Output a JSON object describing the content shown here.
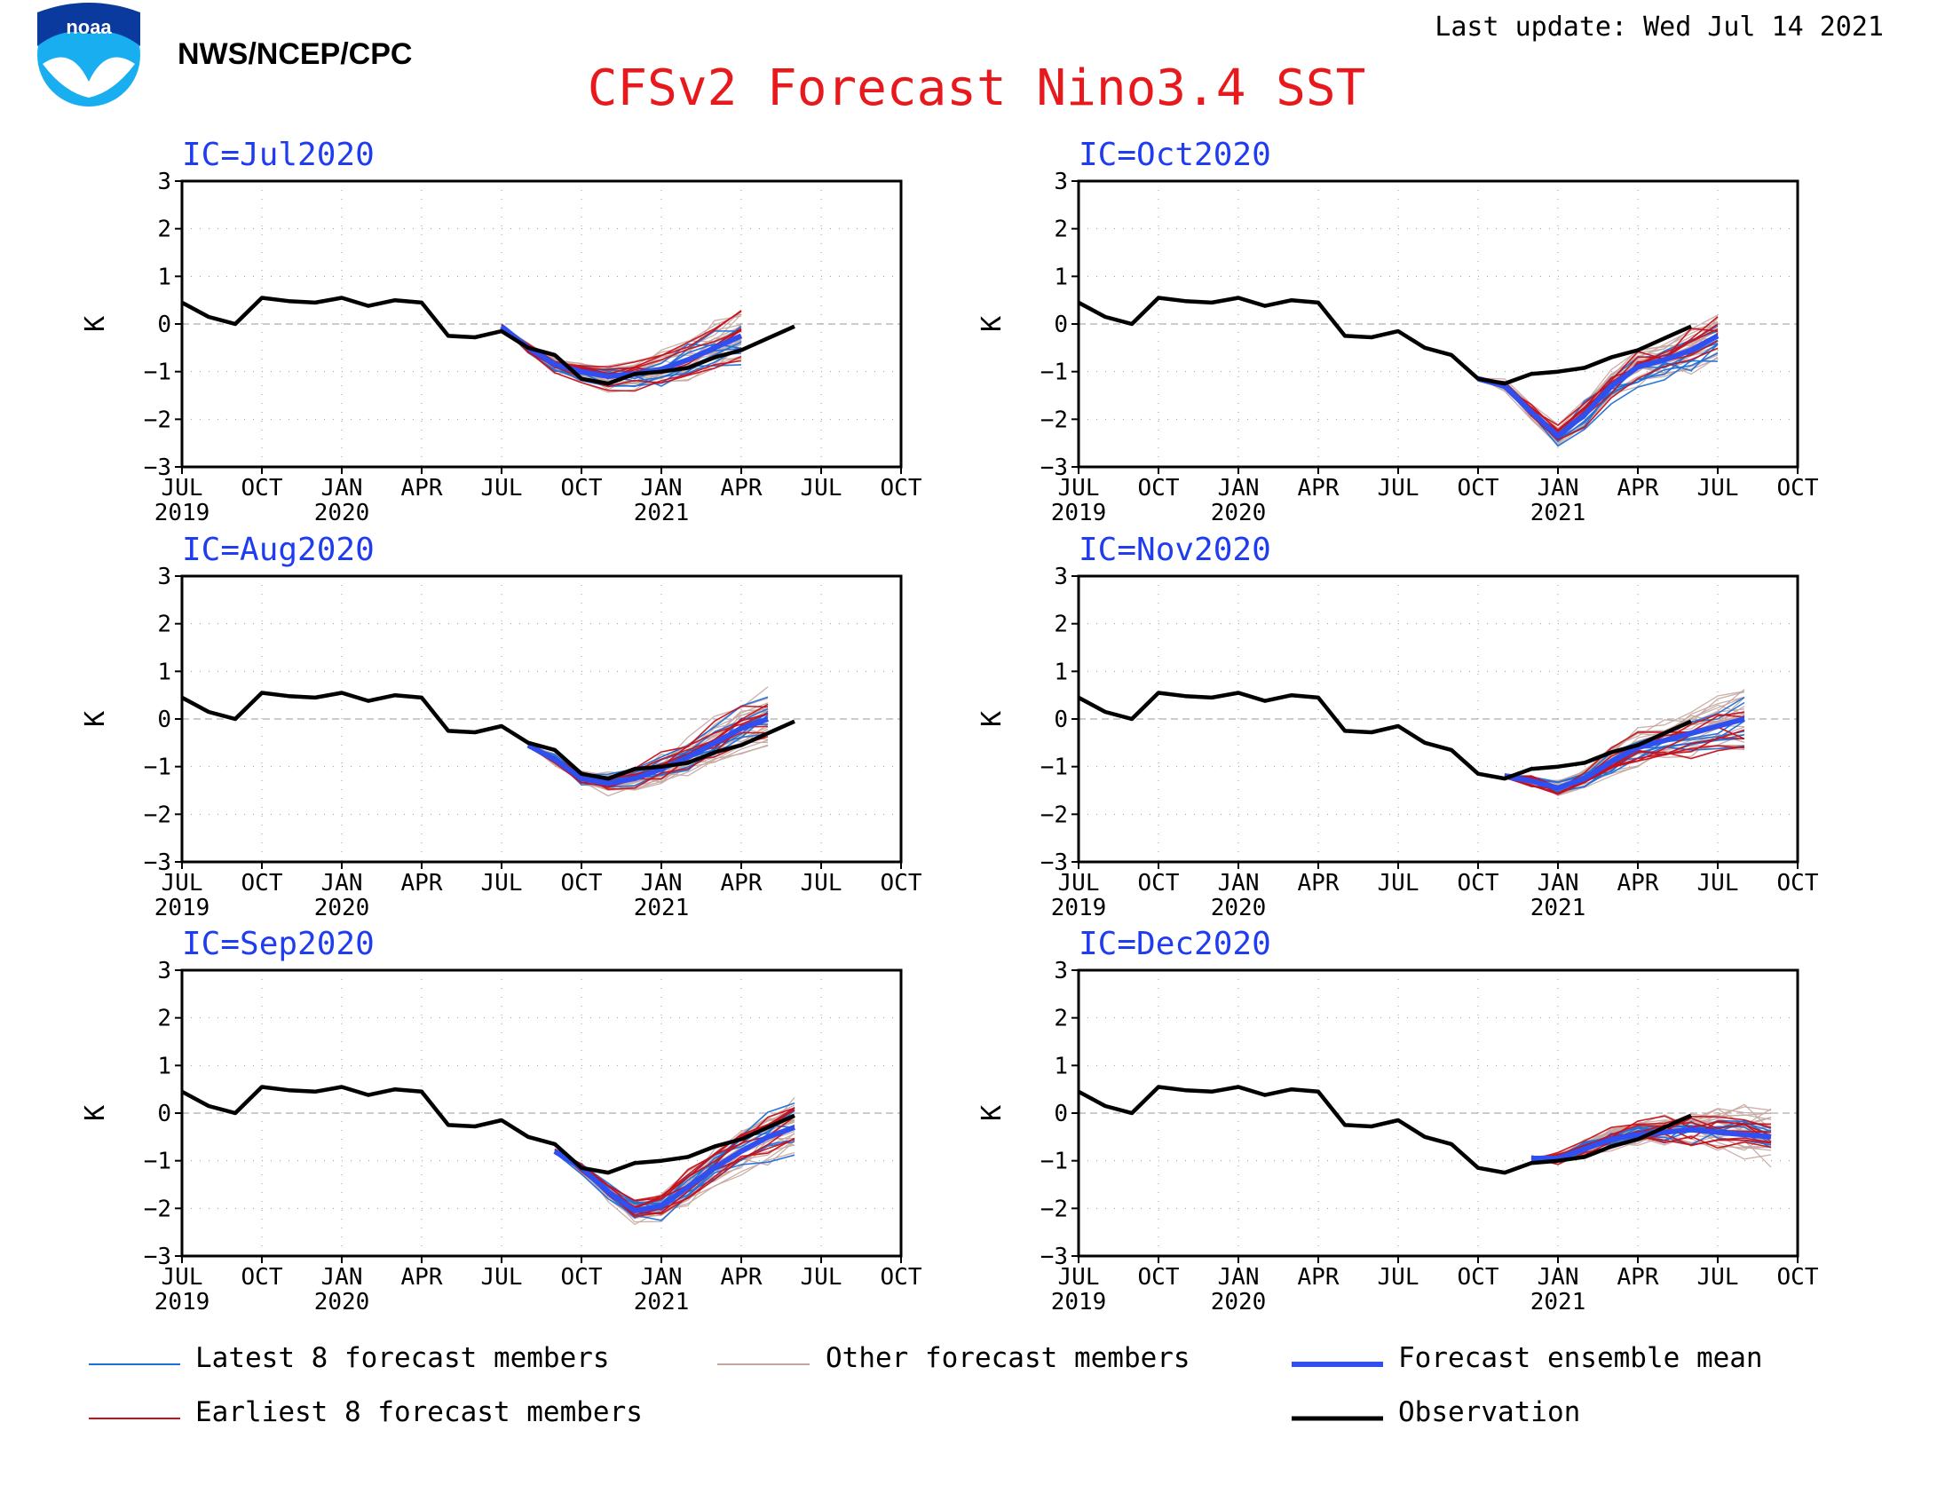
{
  "header": {
    "agency": "NWS/NCEP/CPC",
    "last_update": "Last update: Wed Jul 14 2021",
    "title": "CFSv2 Forecast Nino3.4 SST",
    "logo_text": "noaa"
  },
  "colors": {
    "title": "#e8191c",
    "panel_title": "#1f3cf0",
    "observation": "#000000",
    "ensemble_mean": "#2f4ff0",
    "latest_members": "#1e6fd8",
    "earliest_members": "#c8101a",
    "other_members": "#c4a6a0",
    "noaa_blue": "#19aef0"
  },
  "axis_common": {
    "ylabel": "K",
    "yticks": [
      "3",
      "2",
      "1",
      "0",
      "−1",
      "−2",
      "−3"
    ],
    "ylim": [
      -3,
      3
    ],
    "xtick_months": [
      "JUL",
      "OCT",
      "JAN",
      "APR",
      "JUL",
      "OCT",
      "JAN",
      "APR",
      "JUL",
      "OCT"
    ],
    "xtick_years": [
      "2019",
      "",
      "2020",
      "",
      "",
      "",
      "2021",
      "",
      "",
      ""
    ]
  },
  "legend": {
    "latest": "Latest 8 forecast members",
    "other": "Other forecast members",
    "mean": "Forecast ensemble mean",
    "earliest": "Earliest 8 forecast members",
    "observation": "Observation"
  },
  "chart_data": [
    {
      "type": "line",
      "title": "IC=Jul2020",
      "x": [
        "2019-07",
        "2019-08",
        "2019-09",
        "2019-10",
        "2019-11",
        "2019-12",
        "2020-01",
        "2020-02",
        "2020-03",
        "2020-04",
        "2020-05",
        "2020-06",
        "2020-07",
        "2020-08",
        "2020-09",
        "2020-10",
        "2020-11",
        "2020-12",
        "2021-01",
        "2021-02",
        "2021-03",
        "2021-04",
        "2021-05",
        "2021-06"
      ],
      "observation": [
        0.45,
        0.15,
        0.0,
        0.55,
        0.48,
        0.45,
        0.55,
        0.38,
        0.5,
        0.45,
        -0.25,
        -0.28,
        -0.15,
        -0.5,
        -0.65,
        -1.15,
        -1.25,
        -1.05,
        -1.0,
        -0.92,
        -0.7,
        -0.55,
        -0.3,
        -0.05
      ],
      "forecast_months": [
        "2020-07",
        "2020-08",
        "2020-09",
        "2020-10",
        "2020-11",
        "2020-12",
        "2021-01",
        "2021-02",
        "2021-03",
        "2021-04"
      ],
      "ensemble_mean": [
        -0.05,
        -0.5,
        -0.85,
        -1.0,
        -1.1,
        -1.05,
        -0.95,
        -0.75,
        -0.5,
        -0.25
      ]
    },
    {
      "type": "line",
      "title": "IC=Oct2020",
      "x": [
        "2019-07",
        "2019-08",
        "2019-09",
        "2019-10",
        "2019-11",
        "2019-12",
        "2020-01",
        "2020-02",
        "2020-03",
        "2020-04",
        "2020-05",
        "2020-06",
        "2020-07",
        "2020-08",
        "2020-09",
        "2020-10",
        "2020-11",
        "2020-12",
        "2021-01",
        "2021-02",
        "2021-03",
        "2021-04",
        "2021-05",
        "2021-06"
      ],
      "observation": [
        0.45,
        0.15,
        0.0,
        0.55,
        0.48,
        0.45,
        0.55,
        0.38,
        0.5,
        0.45,
        -0.25,
        -0.28,
        -0.15,
        -0.5,
        -0.65,
        -1.15,
        -1.25,
        -1.05,
        -1.0,
        -0.92,
        -0.7,
        -0.55,
        -0.3,
        -0.05
      ],
      "forecast_months": [
        "2020-10",
        "2020-11",
        "2020-12",
        "2021-01",
        "2021-02",
        "2021-03",
        "2021-04",
        "2021-05",
        "2021-06",
        "2021-07"
      ],
      "ensemble_mean": [
        -1.15,
        -1.3,
        -1.85,
        -2.35,
        -1.9,
        -1.3,
        -0.9,
        -0.75,
        -0.55,
        -0.25
      ]
    },
    {
      "type": "line",
      "title": "IC=Aug2020",
      "x": [
        "2019-07",
        "2019-08",
        "2019-09",
        "2019-10",
        "2019-11",
        "2019-12",
        "2020-01",
        "2020-02",
        "2020-03",
        "2020-04",
        "2020-05",
        "2020-06",
        "2020-07",
        "2020-08",
        "2020-09",
        "2020-10",
        "2020-11",
        "2020-12",
        "2021-01",
        "2021-02",
        "2021-03",
        "2021-04",
        "2021-05",
        "2021-06"
      ],
      "observation": [
        0.45,
        0.15,
        0.0,
        0.55,
        0.48,
        0.45,
        0.55,
        0.38,
        0.5,
        0.45,
        -0.25,
        -0.28,
        -0.15,
        -0.5,
        -0.65,
        -1.15,
        -1.25,
        -1.05,
        -1.0,
        -0.92,
        -0.7,
        -0.55,
        -0.3,
        -0.05
      ],
      "forecast_months": [
        "2020-08",
        "2020-09",
        "2020-10",
        "2020-11",
        "2020-12",
        "2021-01",
        "2021-02",
        "2021-03",
        "2021-04",
        "2021-05"
      ],
      "ensemble_mean": [
        -0.55,
        -0.85,
        -1.25,
        -1.35,
        -1.25,
        -1.05,
        -0.8,
        -0.5,
        -0.2,
        0.0
      ]
    },
    {
      "type": "line",
      "title": "IC=Nov2020",
      "x": [
        "2019-07",
        "2019-08",
        "2019-09",
        "2019-10",
        "2019-11",
        "2019-12",
        "2020-01",
        "2020-02",
        "2020-03",
        "2020-04",
        "2020-05",
        "2020-06",
        "2020-07",
        "2020-08",
        "2020-09",
        "2020-10",
        "2020-11",
        "2020-12",
        "2021-01",
        "2021-02",
        "2021-03",
        "2021-04",
        "2021-05",
        "2021-06"
      ],
      "observation": [
        0.45,
        0.15,
        0.0,
        0.55,
        0.48,
        0.45,
        0.55,
        0.38,
        0.5,
        0.45,
        -0.25,
        -0.28,
        -0.15,
        -0.5,
        -0.65,
        -1.15,
        -1.25,
        -1.05,
        -1.0,
        -0.92,
        -0.7,
        -0.55,
        -0.3,
        -0.05
      ],
      "forecast_months": [
        "2020-11",
        "2020-12",
        "2021-01",
        "2021-02",
        "2021-03",
        "2021-04",
        "2021-05",
        "2021-06",
        "2021-07",
        "2021-08"
      ],
      "ensemble_mean": [
        -1.2,
        -1.3,
        -1.45,
        -1.25,
        -0.9,
        -0.6,
        -0.45,
        -0.3,
        -0.15,
        0.0
      ]
    },
    {
      "type": "line",
      "title": "IC=Sep2020",
      "x": [
        "2019-07",
        "2019-08",
        "2019-09",
        "2019-10",
        "2019-11",
        "2019-12",
        "2020-01",
        "2020-02",
        "2020-03",
        "2020-04",
        "2020-05",
        "2020-06",
        "2020-07",
        "2020-08",
        "2020-09",
        "2020-10",
        "2020-11",
        "2020-12",
        "2021-01",
        "2021-02",
        "2021-03",
        "2021-04",
        "2021-05",
        "2021-06"
      ],
      "observation": [
        0.45,
        0.15,
        0.0,
        0.55,
        0.48,
        0.45,
        0.55,
        0.38,
        0.5,
        0.45,
        -0.25,
        -0.28,
        -0.15,
        -0.5,
        -0.65,
        -1.15,
        -1.25,
        -1.05,
        -1.0,
        -0.92,
        -0.7,
        -0.55,
        -0.3,
        -0.05
      ],
      "forecast_months": [
        "2020-09",
        "2020-10",
        "2020-11",
        "2020-12",
        "2021-01",
        "2021-02",
        "2021-03",
        "2021-04",
        "2021-05",
        "2021-06"
      ],
      "ensemble_mean": [
        -0.8,
        -1.15,
        -1.65,
        -2.05,
        -1.95,
        -1.55,
        -1.15,
        -0.8,
        -0.5,
        -0.3
      ]
    },
    {
      "type": "line",
      "title": "IC=Dec2020",
      "x": [
        "2019-07",
        "2019-08",
        "2019-09",
        "2019-10",
        "2019-11",
        "2019-12",
        "2020-01",
        "2020-02",
        "2020-03",
        "2020-04",
        "2020-05",
        "2020-06",
        "2020-07",
        "2020-08",
        "2020-09",
        "2020-10",
        "2020-11",
        "2020-12",
        "2021-01",
        "2021-02",
        "2021-03",
        "2021-04",
        "2021-05",
        "2021-06"
      ],
      "observation": [
        0.45,
        0.15,
        0.0,
        0.55,
        0.48,
        0.45,
        0.55,
        0.38,
        0.5,
        0.45,
        -0.25,
        -0.28,
        -0.15,
        -0.5,
        -0.65,
        -1.15,
        -1.25,
        -1.05,
        -1.0,
        -0.92,
        -0.7,
        -0.55,
        -0.3,
        -0.05
      ],
      "forecast_months": [
        "2020-12",
        "2021-01",
        "2021-02",
        "2021-03",
        "2021-04",
        "2021-05",
        "2021-06",
        "2021-07",
        "2021-08",
        "2021-09"
      ],
      "ensemble_mean": [
        -0.95,
        -0.95,
        -0.75,
        -0.55,
        -0.45,
        -0.4,
        -0.35,
        -0.4,
        -0.45,
        -0.5
      ]
    }
  ]
}
